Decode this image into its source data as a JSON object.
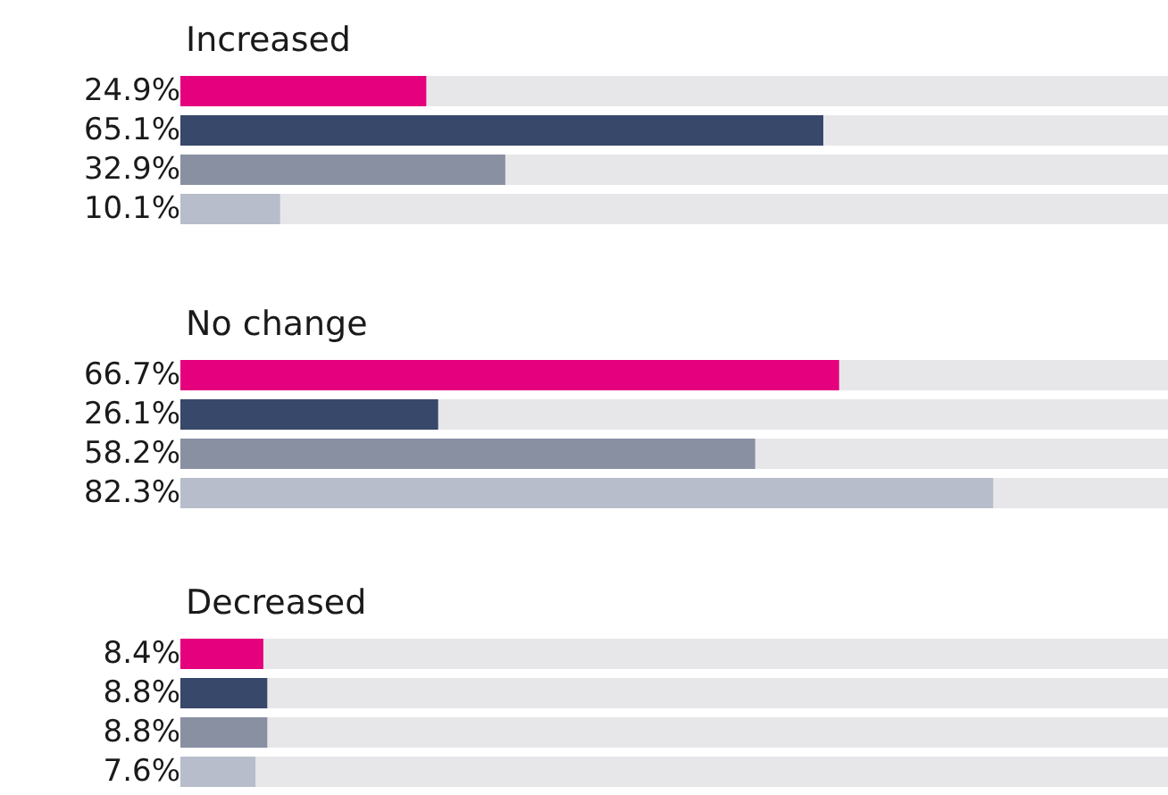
{
  "chart_data": [
    {
      "type": "bar",
      "orientation": "horizontal",
      "title": "Increased",
      "categories": [
        null,
        null,
        null,
        null
      ],
      "values": [
        24.9,
        65.1,
        32.9,
        10.1
      ],
      "value_labels": [
        "24.9%",
        "65.1%",
        "32.9%",
        "10.1%"
      ],
      "colors": [
        "#e5007d",
        "#38486a",
        "#8990a2",
        "#b8bdcb"
      ],
      "xlim": [
        0,
        100
      ],
      "tick_labels": false
    },
    {
      "type": "bar",
      "orientation": "horizontal",
      "title": "No change",
      "categories": [
        null,
        null,
        null,
        null
      ],
      "values": [
        66.7,
        26.1,
        58.2,
        82.3
      ],
      "value_labels": [
        "66.7%",
        "26.1%",
        "58.2%",
        "82.3%"
      ],
      "colors": [
        "#e5007d",
        "#38486a",
        "#8990a2",
        "#b8bdcb"
      ],
      "xlim": [
        0,
        100
      ],
      "tick_labels": false
    },
    {
      "type": "bar",
      "orientation": "horizontal",
      "title": "Decreased",
      "categories": [
        null,
        null,
        null,
        null
      ],
      "values": [
        8.4,
        8.8,
        8.8,
        7.6
      ],
      "value_labels": [
        "8.4%",
        "8.8%",
        "8.8%",
        "7.6%"
      ],
      "colors": [
        "#e5007d",
        "#38486a",
        "#8990a2",
        "#b8bdcb"
      ],
      "xlim": [
        0,
        100
      ],
      "tick_labels": false
    }
  ]
}
